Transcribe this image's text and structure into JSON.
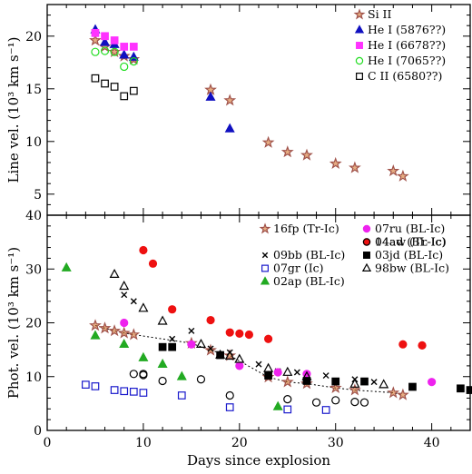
{
  "chart_data": [
    {
      "type": "scatter",
      "panel": "top",
      "ylabel": "Line vel. (10³ km s⁻¹)",
      "xlim": [
        0,
        44
      ],
      "ylim": [
        3,
        23
      ],
      "yticks": [
        5,
        10,
        15,
        20
      ],
      "legend_position": "top-right",
      "series": [
        {
          "name": "Si II",
          "marker": "star",
          "color": "#a0524a",
          "points": [
            [
              5,
              19.6
            ],
            [
              6,
              19.0
            ],
            [
              7,
              18.5
            ],
            [
              8,
              18.1
            ],
            [
              9,
              17.8
            ],
            [
              17,
              14.9
            ],
            [
              19,
              13.9
            ],
            [
              23,
              9.9
            ],
            [
              25,
              9.0
            ],
            [
              27,
              8.7
            ],
            [
              30,
              7.9
            ],
            [
              32,
              7.5
            ],
            [
              36,
              7.2
            ],
            [
              37,
              6.7
            ]
          ]
        },
        {
          "name": "He I (5876??)",
          "marker": "triangle",
          "color": "#1010c0",
          "points": [
            [
              5,
              20.6
            ],
            [
              6,
              19.4
            ],
            [
              7,
              19.2
            ],
            [
              8,
              18.2
            ],
            [
              9,
              18.0
            ],
            [
              17,
              14.2
            ],
            [
              19,
              11.2
            ]
          ]
        },
        {
          "name": "He I (6678??)",
          "marker": "square",
          "color": "#ff33ff",
          "points": [
            [
              5,
              20.3
            ],
            [
              6,
              20.0
            ],
            [
              7,
              19.6
            ],
            [
              8,
              19.0
            ],
            [
              9,
              19.0
            ]
          ]
        },
        {
          "name": "He I (7065??)",
          "marker": "circle-open",
          "color": "#22dd22",
          "points": [
            [
              5,
              18.5
            ],
            [
              6,
              18.6
            ],
            [
              7,
              18.5
            ],
            [
              8,
              17.1
            ],
            [
              9,
              17.6
            ]
          ]
        },
        {
          "name": "C II (6580??)",
          "marker": "square-open",
          "color": "#000000",
          "points": [
            [
              5,
              16.0
            ],
            [
              6,
              15.5
            ],
            [
              7,
              15.2
            ],
            [
              8,
              14.3
            ],
            [
              9,
              14.8
            ]
          ]
        }
      ]
    },
    {
      "type": "scatter",
      "panel": "bottom",
      "xlabel": "Days since explosion",
      "ylabel": "Phot. vel. (10³ km s⁻¹)",
      "xlim": [
        0,
        44
      ],
      "ylim": [
        0,
        40
      ],
      "xticks": [
        0,
        10,
        20,
        30,
        40
      ],
      "yticks": [
        0,
        10,
        20,
        30
      ],
      "legend_position": "top",
      "series": [
        {
          "name": "16fp (Tr-Ic)",
          "marker": "star",
          "color": "#a0524a",
          "dotted_line": true,
          "points": [
            [
              5,
              19.5
            ],
            [
              6,
              19.0
            ],
            [
              7,
              18.5
            ],
            [
              8,
              18.1
            ],
            [
              9,
              17.8
            ],
            [
              15,
              16.2
            ],
            [
              17,
              14.9
            ],
            [
              19,
              13.9
            ],
            [
              23,
              9.9
            ],
            [
              25,
              9.0
            ],
            [
              27,
              8.7
            ],
            [
              30,
              7.9
            ],
            [
              32,
              7.5
            ],
            [
              36,
              7.0
            ],
            [
              37,
              6.6
            ]
          ]
        },
        {
          "name": "14ad (BL-Ic)",
          "marker": "circle",
          "color": "#ee1111",
          "points": [
            [
              10,
              33.5
            ],
            [
              11,
              31.0
            ],
            [
              13,
              22.5
            ],
            [
              17,
              20.5
            ],
            [
              19,
              18.2
            ],
            [
              20,
              18.0
            ],
            [
              21,
              17.8
            ],
            [
              23,
              17.0
            ],
            [
              37,
              16.0
            ],
            [
              39,
              15.8
            ]
          ]
        },
        {
          "name": "09bb (BL-Ic)",
          "marker": "cross",
          "color": "#000000",
          "points": [
            [
              8,
              25.2
            ],
            [
              9,
              24.0
            ],
            [
              13,
              17.0
            ],
            [
              15,
              18.5
            ],
            [
              17,
              15.2
            ],
            [
              19,
              14.5
            ],
            [
              22,
              12.3
            ],
            [
              24,
              11.0
            ],
            [
              26,
              10.8
            ],
            [
              29,
              10.2
            ],
            [
              32,
              9.5
            ],
            [
              34,
              9.0
            ]
          ]
        },
        {
          "name": "07gr (Ic)",
          "marker": "square-open",
          "color": "#1a1acc",
          "points": [
            [
              4,
              8.5
            ],
            [
              5,
              8.2
            ],
            [
              7,
              7.5
            ],
            [
              8,
              7.3
            ],
            [
              9,
              7.2
            ],
            [
              10,
              7.0
            ],
            [
              14,
              6.5
            ],
            [
              19,
              4.3
            ],
            [
              25,
              3.9
            ],
            [
              29,
              3.8
            ]
          ]
        },
        {
          "name": "07ru (BL-Ic)",
          "marker": "circle",
          "color": "#ee22ee",
          "points": [
            [
              8,
              20.0
            ],
            [
              15,
              16.0
            ],
            [
              20,
              12.0
            ],
            [
              24,
              10.8
            ],
            [
              27,
              10.5
            ],
            [
              40,
              9.0
            ]
          ]
        },
        {
          "name": "04aw (Tr-Ic)",
          "marker": "circle-open",
          "color": "#000000",
          "points": [
            [
              9,
              10.5
            ],
            [
              10,
              10.5
            ],
            [
              10,
              10.3
            ],
            [
              12,
              9.2
            ],
            [
              16,
              9.5
            ],
            [
              19,
              6.5
            ],
            [
              25,
              5.8
            ],
            [
              28,
              5.2
            ],
            [
              30,
              5.6
            ],
            [
              32,
              5.3
            ],
            [
              33,
              5.2
            ]
          ]
        },
        {
          "name": "03jd (BL-Ic)",
          "marker": "square",
          "color": "#000000",
          "points": [
            [
              12,
              15.5
            ],
            [
              13,
              15.5
            ],
            [
              18,
              14.0
            ],
            [
              23,
              10.2
            ],
            [
              27,
              9.2
            ],
            [
              30,
              9.1
            ],
            [
              33,
              9.1
            ],
            [
              38,
              8.1
            ],
            [
              43,
              7.8
            ],
            [
              44,
              7.5
            ]
          ]
        },
        {
          "name": "02ap (BL-Ic)",
          "marker": "triangle",
          "color": "#22aa22",
          "points": [
            [
              2,
              30.2
            ],
            [
              5,
              17.6
            ],
            [
              8,
              16.0
            ],
            [
              10,
              13.5
            ],
            [
              12,
              12.3
            ],
            [
              14,
              10.0
            ],
            [
              24,
              4.4
            ]
          ]
        },
        {
          "name": "98bw (BL-Ic)",
          "marker": "triangle-open",
          "color": "#000000",
          "points": [
            [
              7,
              29.0
            ],
            [
              8,
              26.8
            ],
            [
              10,
              22.7
            ],
            [
              12,
              20.3
            ],
            [
              16,
              16.0
            ],
            [
              18,
              14.0
            ],
            [
              19,
              13.8
            ],
            [
              20,
              13.2
            ],
            [
              23,
              11.5
            ],
            [
              25,
              10.8
            ],
            [
              27,
              10.0
            ],
            [
              32,
              8.6
            ],
            [
              35,
              8.5
            ]
          ]
        }
      ]
    }
  ]
}
